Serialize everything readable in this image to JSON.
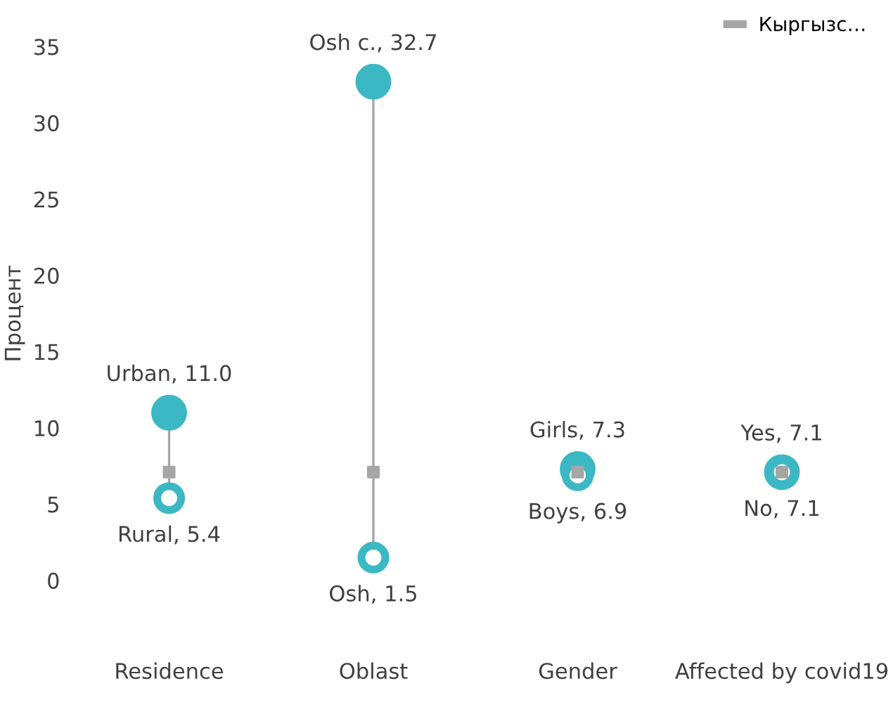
{
  "chart_data": {
    "type": "scatter",
    "ylabel": "Процент",
    "categories": [
      "Residence",
      "Oblast",
      "Gender",
      "Affected by covid19"
    ],
    "ylim": [
      0,
      35
    ],
    "yticks": [
      0,
      5,
      10,
      15,
      20,
      25,
      30,
      35
    ],
    "legend": "top right",
    "series": [
      {
        "color": "#3bb8c3",
        "marker": "circle",
        "values": [
          11.0,
          32.7,
          7.3,
          7.1
        ],
        "value_labels": [
          "Urban, 11.0",
          "Osh c., 32.7",
          "Girls, 7.3",
          "Yes, 7.1"
        ]
      },
      {
        "color": "#3bb8c3",
        "marker": "circle",
        "values": [
          5.4,
          1.5,
          6.9,
          7.1
        ],
        "value_labels": [
          "Rural, 5.4",
          "Osh, 1.5",
          "Boys, 6.9",
          "No, 7.1"
        ]
      },
      {
        "name": "Кыргызс…",
        "color": "#a6a6a6",
        "marker": "square",
        "values": [
          7.1,
          7.1,
          7.1,
          7.1
        ]
      }
    ]
  }
}
